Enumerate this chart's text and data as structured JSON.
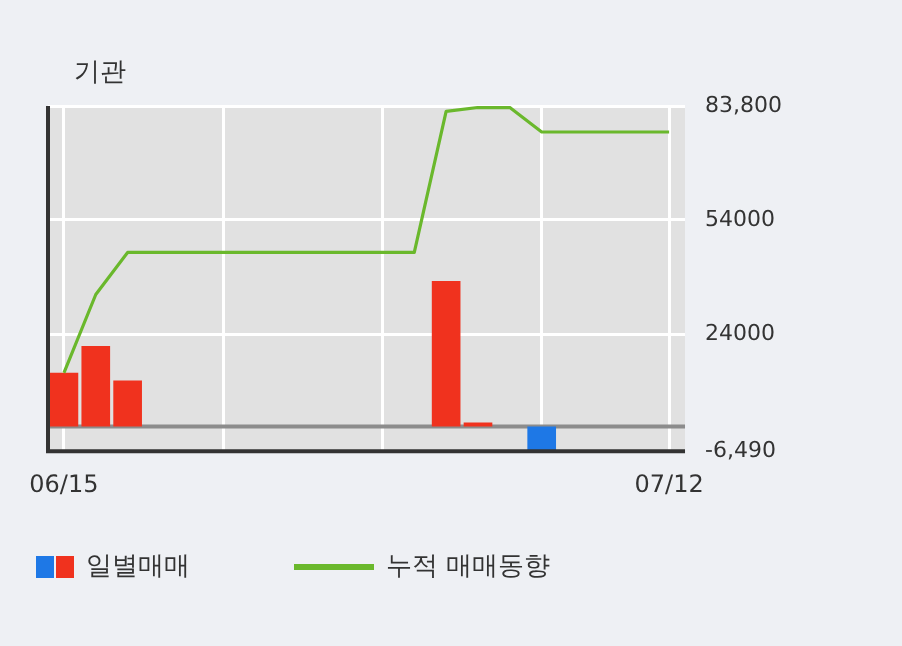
{
  "chart_data": {
    "type": "bar",
    "title": "기관",
    "categories": [
      "06/15",
      null,
      null,
      null,
      null,
      null,
      null,
      null,
      null,
      null,
      null,
      null,
      null,
      null,
      null,
      null,
      null,
      null,
      null,
      "07/12"
    ],
    "series": [
      {
        "name": "일별매매",
        "color": "#f0321e",
        "colors": [
          "#f0321e",
          "#f0321e",
          "#f0321e",
          "#f0321e",
          "#f0321e",
          "#f0321e",
          "#f0321e",
          "#f0321e",
          "#f0321e",
          "#f0321e",
          "#f0321e",
          "#f0321e",
          "#f0321e",
          "#f0321e",
          "#f0321e",
          "#1e78e6",
          "#f0321e",
          "#f0321e",
          "#f0321e",
          "#f0321e"
        ],
        "values": [
          14000,
          21000,
          12000,
          0,
          0,
          0,
          0,
          0,
          0,
          0,
          0,
          0,
          38000,
          1000,
          0,
          -6400,
          0,
          0,
          0,
          0
        ]
      },
      {
        "name": "누적 매매동향",
        "type": "line",
        "color": "#6ab82c",
        "values": [
          14000,
          34500,
          45500,
          45500,
          45500,
          45500,
          45500,
          45500,
          45500,
          45500,
          45500,
          45500,
          82400,
          83400,
          83400,
          77000,
          77000,
          77000,
          77000,
          77000
        ]
      }
    ],
    "ylim": [
      -6490,
      83800
    ],
    "yticks": [
      {
        "value": -6490,
        "label": "-6,490"
      },
      24000,
      54000,
      {
        "value": 83800,
        "label": "83,800"
      }
    ],
    "ref_lines": [
      {
        "axis": "y",
        "value": 0,
        "color": "#8c8c8c"
      }
    ],
    "grid": true,
    "legend": "bottom",
    "marker": "none"
  }
}
